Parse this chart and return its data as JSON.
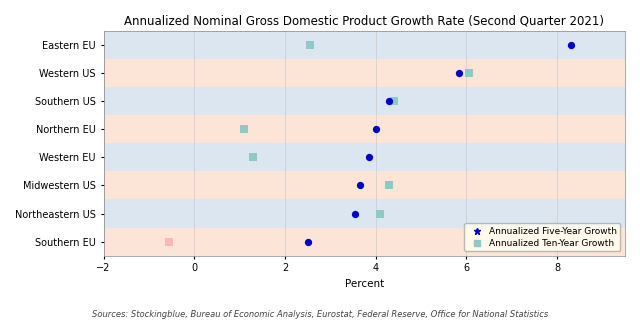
{
  "title": "Annualized Nominal Gross Domestic Product Growth Rate (Second Quarter 2021)",
  "xlabel": "Percent",
  "source": "Sources: Stockingblue, Bureau of Economic Analysis, Eurostat, Federal Reserve, Office for National Statistics",
  "regions": [
    "Eastern EU",
    "Western US",
    "Southern US",
    "Northern EU",
    "Western EU",
    "Midwestern US",
    "Northeastern US",
    "Southern EU"
  ],
  "five_year": [
    8.3,
    5.85,
    4.3,
    4.0,
    3.85,
    3.65,
    3.55,
    2.5
  ],
  "ten_year": [
    2.55,
    6.05,
    4.4,
    1.1,
    1.3,
    4.3,
    4.1,
    -0.55
  ],
  "dot_color": "#0000CD",
  "square_color": "#90C8C8",
  "square_neg_color": "#FFB6B6",
  "xlim": [
    -1.5,
    9.5
  ],
  "xticks": [
    -2,
    0,
    2,
    4,
    6,
    8
  ],
  "bg_colors": [
    "#dce6f1",
    "#fce4d6"
  ],
  "title_fontsize": 8.5,
  "label_fontsize": 7.5,
  "tick_fontsize": 7,
  "source_fontsize": 6,
  "legend_fontsize": 6.5
}
